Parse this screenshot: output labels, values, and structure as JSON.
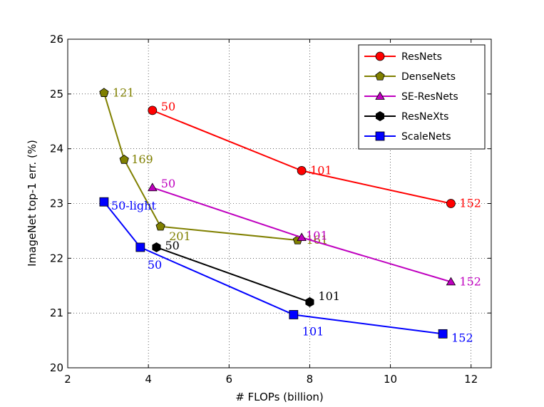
{
  "chart_data": {
    "type": "line",
    "xlabel": "# FLOPs (billion)",
    "ylabel": "ImageNet top-1 err. (%)",
    "xlim": [
      2,
      12.5
    ],
    "ylim": [
      20,
      26
    ],
    "xticks": [
      "2",
      "4",
      "6",
      "8",
      "10",
      "12"
    ],
    "yticks": [
      "20",
      "21",
      "22",
      "23",
      "24",
      "25",
      "26"
    ],
    "grid": true,
    "legend_position": "top-right",
    "series": [
      {
        "name": "ResNets",
        "color": "#ff0000",
        "marker": "circle",
        "points": [
          {
            "x": 4.1,
            "y": 24.7,
            "label": "50"
          },
          {
            "x": 7.8,
            "y": 23.6,
            "label": "101"
          },
          {
            "x": 11.5,
            "y": 23.0,
            "label": "152"
          }
        ]
      },
      {
        "name": "DenseNets",
        "color": "#808000",
        "marker": "pentagon",
        "points": [
          {
            "x": 2.9,
            "y": 25.02,
            "label": "121"
          },
          {
            "x": 3.4,
            "y": 23.8,
            "label": "169"
          },
          {
            "x": 4.3,
            "y": 22.58,
            "label": "201"
          },
          {
            "x": 7.7,
            "y": 22.33,
            "label": "161"
          }
        ]
      },
      {
        "name": "SE-ResNets",
        "color": "#bf00bf",
        "marker": "triangle",
        "points": [
          {
            "x": 4.1,
            "y": 23.29,
            "label": "50"
          },
          {
            "x": 7.8,
            "y": 22.38,
            "label": "101"
          },
          {
            "x": 11.5,
            "y": 21.57,
            "label": "152"
          }
        ]
      },
      {
        "name": "ResNeXts",
        "color": "#000000",
        "marker": "hexagon",
        "points": [
          {
            "x": 4.2,
            "y": 22.2,
            "label": "50"
          },
          {
            "x": 8.0,
            "y": 21.2,
            "label": "101"
          }
        ]
      },
      {
        "name": "ScaleNets",
        "color": "#0000ff",
        "marker": "square",
        "points": [
          {
            "x": 2.9,
            "y": 23.03,
            "label": "50-light"
          },
          {
            "x": 3.8,
            "y": 22.2,
            "label": "50"
          },
          {
            "x": 7.6,
            "y": 20.97,
            "label": "101"
          },
          {
            "x": 11.3,
            "y": 20.62,
            "label": "152"
          }
        ]
      }
    ]
  }
}
